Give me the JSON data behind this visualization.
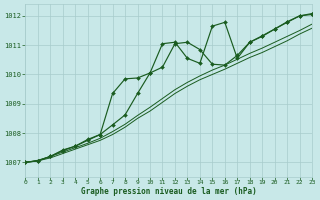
{
  "bg_color": "#c8e8e8",
  "grid_color": "#a8cccc",
  "line_color": "#1a5c20",
  "title": "Graphe pression niveau de la mer (hPa)",
  "xlim": [
    0,
    23
  ],
  "ylim": [
    1006.5,
    1012.4
  ],
  "yticks": [
    1007,
    1008,
    1009,
    1010,
    1011,
    1012
  ],
  "xticks": [
    0,
    1,
    2,
    3,
    4,
    5,
    6,
    7,
    8,
    9,
    10,
    11,
    12,
    13,
    14,
    15,
    16,
    17,
    18,
    19,
    20,
    21,
    22,
    23
  ],
  "trend1_x": [
    0,
    1,
    2,
    3,
    4,
    5,
    6,
    7,
    8,
    9,
    10,
    11,
    12,
    13,
    14,
    15,
    16,
    17,
    18,
    19,
    20,
    21,
    22,
    23
  ],
  "trend1_y": [
    1007.0,
    1007.05,
    1007.15,
    1007.3,
    1007.45,
    1007.6,
    1007.75,
    1007.95,
    1008.2,
    1008.5,
    1008.75,
    1009.05,
    1009.35,
    1009.6,
    1009.82,
    1010.0,
    1010.18,
    1010.38,
    1010.58,
    1010.75,
    1010.95,
    1011.15,
    1011.38,
    1011.58
  ],
  "trend2_x": [
    0,
    1,
    2,
    3,
    4,
    5,
    6,
    7,
    8,
    9,
    10,
    11,
    12,
    13,
    14,
    15,
    16,
    17,
    18,
    19,
    20,
    21,
    22,
    23
  ],
  "trend2_y": [
    1007.0,
    1007.07,
    1007.2,
    1007.35,
    1007.5,
    1007.65,
    1007.82,
    1008.05,
    1008.3,
    1008.6,
    1008.88,
    1009.18,
    1009.48,
    1009.73,
    1009.95,
    1010.15,
    1010.32,
    1010.52,
    1010.72,
    1010.9,
    1011.1,
    1011.3,
    1011.5,
    1011.72
  ],
  "line1_x": [
    0,
    1,
    2,
    3,
    4,
    5,
    6,
    7,
    8,
    9,
    10,
    11,
    12,
    13,
    14,
    15,
    16,
    17,
    18,
    19,
    20,
    21,
    22,
    23
  ],
  "line1_y": [
    1007.0,
    1007.05,
    1007.2,
    1007.4,
    1007.55,
    1007.75,
    1007.95,
    1008.28,
    1008.62,
    1009.35,
    1010.05,
    1010.25,
    1011.05,
    1011.1,
    1010.85,
    1010.35,
    1010.32,
    1010.65,
    1011.1,
    1011.3,
    1011.55,
    1011.78,
    1012.0,
    1012.05
  ],
  "line2_x": [
    0,
    1,
    2,
    3,
    4,
    5,
    6,
    7,
    8,
    9,
    10,
    11,
    12,
    13,
    14,
    15,
    16,
    17,
    18,
    19,
    20,
    21,
    22,
    23
  ],
  "line2_y": [
    1007.0,
    1007.05,
    1007.2,
    1007.42,
    1007.55,
    1007.78,
    1007.95,
    1009.35,
    1009.85,
    1009.88,
    1010.05,
    1011.05,
    1011.1,
    1010.55,
    1010.38,
    1011.65,
    1011.78,
    1010.55,
    1011.1,
    1011.32,
    1011.55,
    1011.8,
    1012.0,
    1012.08
  ]
}
